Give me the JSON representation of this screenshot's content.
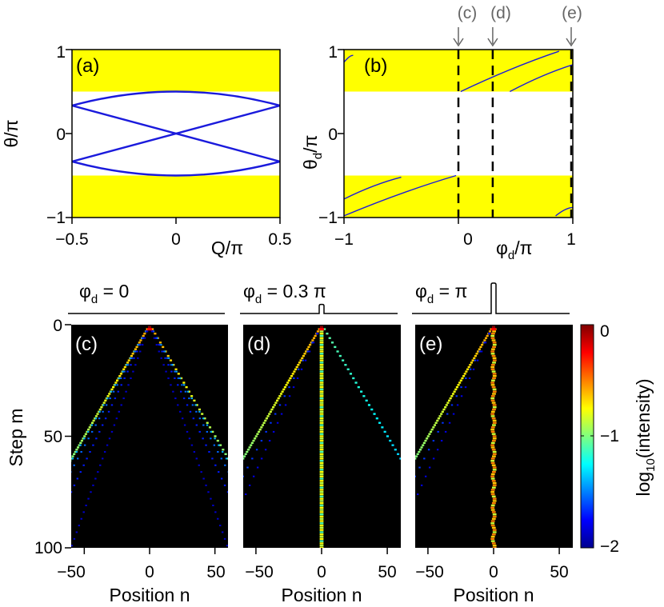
{
  "colors": {
    "band": "#ffff00",
    "curve": "#1a1adc",
    "bg_dark": "#00008f",
    "axis": "#000000",
    "marker": "#666666"
  },
  "panel_a": {
    "label": "(a)",
    "xlabel": "Q/π",
    "ylabel": "θ/π",
    "xticks": [
      "−0.5",
      "0",
      "0.5"
    ],
    "yticks": [
      "1",
      "0",
      "−1"
    ]
  },
  "panel_b": {
    "label": "(b)",
    "xlabel": "φ",
    "xlabel_sub": "d",
    "xlabel_tail": "/π",
    "ylabel": "θ",
    "ylabel_sub": "d",
    "ylabel_tail": "/π",
    "xticks": [
      "−1",
      "0",
      "1"
    ],
    "yticks": [
      "1",
      "0",
      "−1"
    ],
    "markers": [
      "(c)",
      "(d)",
      "(e)"
    ]
  },
  "panel_c": {
    "label": "(c)",
    "title_pre": "φ",
    "title_sub": "d",
    "title_post": " = 0"
  },
  "panel_d": {
    "label": "(d)",
    "title_pre": "φ",
    "title_sub": "d",
    "title_post": " = 0.3 π"
  },
  "panel_e": {
    "label": "(e)",
    "title_pre": "φ",
    "title_sub": "d",
    "title_post": " = π"
  },
  "walk_axes": {
    "xlabel": "Position n",
    "ylabel": "Step m",
    "xticks": [
      "−50",
      "0",
      "50"
    ],
    "yticks": [
      "0",
      "50",
      "100"
    ]
  },
  "colorbar": {
    "label_pre": "log",
    "label_sub": "10",
    "label_post": "(intensity)",
    "ticks": [
      "0",
      "−1",
      "−2"
    ]
  },
  "chart_data": [
    {
      "type": "line",
      "panel": "a",
      "title": "",
      "xlabel": "Q/π",
      "ylabel": "θ/π",
      "xlim": [
        -0.5,
        0.5
      ],
      "ylim": [
        -1,
        1
      ],
      "shaded_bands": [
        [
          0.5,
          1
        ],
        [
          -1,
          -0.5
        ]
      ],
      "series": [
        {
          "name": "upper arch",
          "x": [
            -0.5,
            0,
            0.5
          ],
          "y": [
            0.333,
            0.5,
            0.333
          ]
        },
        {
          "name": "lower arch",
          "x": [
            -0.5,
            0,
            0.5
          ],
          "y": [
            -0.333,
            -0.5,
            -0.333
          ]
        },
        {
          "name": "rising line",
          "x": [
            -0.5,
            0.5
          ],
          "y": [
            -0.333,
            0.333
          ]
        },
        {
          "name": "falling line",
          "x": [
            -0.5,
            0.5
          ],
          "y": [
            0.333,
            -0.333
          ]
        }
      ]
    },
    {
      "type": "line",
      "panel": "b",
      "title": "",
      "xlabel": "φd/π",
      "ylabel": "θd/π",
      "xlim": [
        -1,
        1
      ],
      "ylim": [
        -1,
        1
      ],
      "shaded_bands": [
        [
          0.5,
          1
        ],
        [
          -1,
          -0.5
        ]
      ],
      "vertical_markers": [
        {
          "label": "(c)",
          "x": 0
        },
        {
          "label": "(d)",
          "x": 0.3
        },
        {
          "label": "(e)",
          "x": 1
        }
      ],
      "series": [
        {
          "name": "s1",
          "x": [
            -1,
            -0.92
          ],
          "y": [
            0.85,
            0.93
          ]
        },
        {
          "name": "s2",
          "x": [
            -1,
            -0.5
          ],
          "y": [
            -0.78,
            -0.52
          ]
        },
        {
          "name": "s3",
          "x": [
            -1,
            -0.02
          ],
          "y": [
            -0.98,
            -0.5
          ]
        },
        {
          "name": "s4",
          "x": [
            0.02,
            0.88
          ],
          "y": [
            0.5,
            0.98
          ]
        },
        {
          "name": "s5",
          "x": [
            0.45,
            1
          ],
          "y": [
            0.5,
            0.82
          ]
        },
        {
          "name": "s6",
          "x": [
            0.85,
            1
          ],
          "y": [
            -0.98,
            -0.88
          ]
        }
      ]
    },
    {
      "type": "heatmap",
      "panel": "c",
      "title": "φd = 0",
      "xlabel": "Position n",
      "ylabel": "Step m",
      "xlim": [
        -60,
        60
      ],
      "ylim": [
        100,
        0
      ],
      "clim": [
        -2,
        0
      ],
      "defect_phase_pi": 0,
      "features": [
        "ballistic light cone |n| = m",
        "interference fringes inside cone"
      ]
    },
    {
      "type": "heatmap",
      "panel": "d",
      "title": "φd = 0.3 π",
      "xlabel": "Position n",
      "ylabel": "Step m",
      "xlim": [
        -60,
        60
      ],
      "ylim": [
        100,
        0
      ],
      "clim": [
        -2,
        0
      ],
      "defect_phase_pi": 0.3,
      "features": [
        "strong left cone edge",
        "weaker right cone edge",
        "localized state at n = 0"
      ]
    },
    {
      "type": "heatmap",
      "panel": "e",
      "title": "φd = π",
      "xlabel": "Position n",
      "ylabel": "Step m",
      "xlim": [
        -60,
        60
      ],
      "ylim": [
        100,
        0
      ],
      "clim": [
        -2,
        0
      ],
      "defect_phase_pi": 1,
      "features": [
        "left cone edge only",
        "strongly localized state at n = 0"
      ]
    }
  ]
}
